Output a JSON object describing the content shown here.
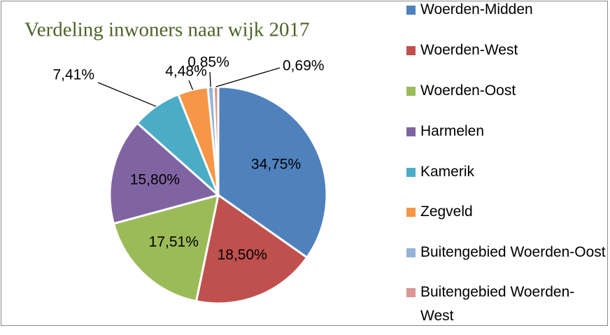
{
  "chart_data": {
    "type": "pie",
    "title": "Verdeling inwoners naar wijk 2017",
    "categories": [
      "Woerden-Midden",
      "Woerden-West",
      "Woerden-Oost",
      "Harmelen",
      "Kamerik",
      "Zegveld",
      "Buitengebied Woerden-Oost",
      "Buitengebied Woerden-West"
    ],
    "values": [
      34.75,
      18.5,
      17.51,
      15.8,
      7.41,
      4.48,
      0.85,
      0.69
    ],
    "value_labels": [
      "34,75%",
      "18,50%",
      "17,51%",
      "15,80%",
      "7,41%",
      "4,48%",
      "0,85%",
      "0,69%"
    ],
    "colors": [
      "#4f81bd",
      "#c0504d",
      "#9bbb59",
      "#8064a2",
      "#4bacc6",
      "#f79646",
      "#95b3d7",
      "#d99694"
    ],
    "legend": "right"
  }
}
